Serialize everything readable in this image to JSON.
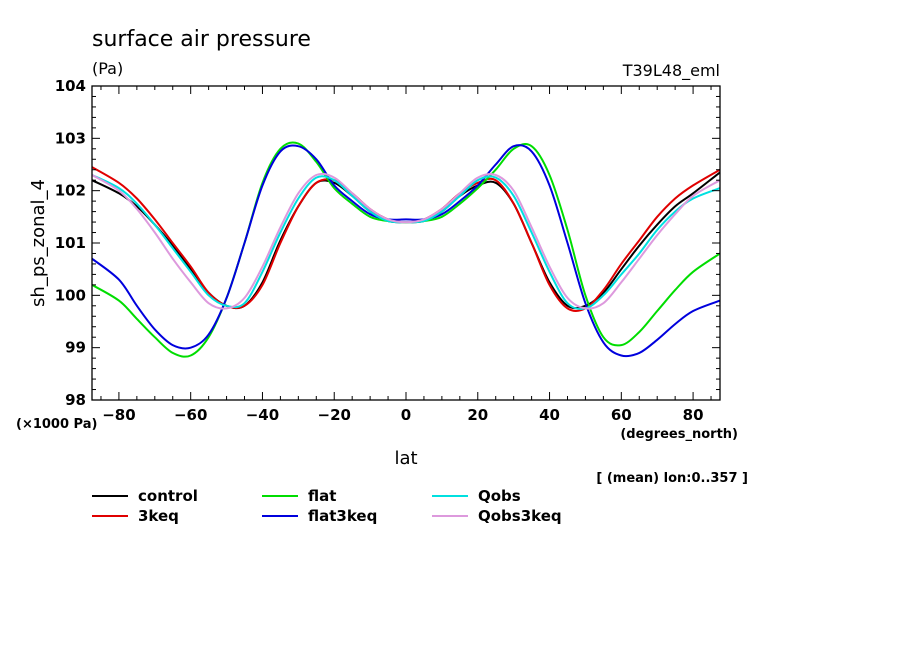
{
  "chart_data": {
    "type": "line",
    "title": "surface air pressure",
    "units_label": "(Pa)",
    "model_label": "T39L48_eml",
    "xlabel": "lat",
    "xunits": "(degrees_north)",
    "ylabel": "sh_ps_zonal_4",
    "yscale_label": "(×1000 Pa)",
    "footnote": "[ (mean) lon:0..357 ]",
    "xlim": [
      -87.5,
      87.5
    ],
    "ylim": [
      98,
      104
    ],
    "xticks": [
      -80,
      -60,
      -40,
      -20,
      0,
      20,
      40,
      60,
      80
    ],
    "xtick_labels": [
      "−80",
      "−60",
      "−40",
      "−20",
      "0",
      "20",
      "40",
      "60",
      "80"
    ],
    "yticks": [
      98,
      99,
      100,
      101,
      102,
      103,
      104
    ],
    "ytick_labels": [
      "98",
      "99",
      "100",
      "101",
      "102",
      "103",
      "104"
    ],
    "x": [
      -87.5,
      -80,
      -75,
      -70,
      -65,
      -60,
      -55,
      -50,
      -45,
      -40,
      -35,
      -30,
      -25,
      -20,
      -15,
      -10,
      -5,
      0,
      5,
      10,
      15,
      20,
      25,
      30,
      35,
      40,
      45,
      50,
      55,
      60,
      65,
      70,
      75,
      80,
      87.5
    ],
    "series": [
      {
        "name": "control",
        "color": "#000000",
        "values": [
          102.2,
          101.95,
          101.7,
          101.35,
          100.95,
          100.5,
          100.05,
          99.8,
          99.8,
          100.25,
          101.05,
          101.7,
          102.15,
          102.15,
          101.9,
          101.6,
          101.42,
          101.4,
          101.42,
          101.6,
          101.9,
          102.1,
          102.15,
          101.75,
          101.0,
          100.25,
          99.8,
          99.8,
          100.05,
          100.5,
          100.95,
          101.35,
          101.7,
          101.95,
          102.35
        ]
      },
      {
        "name": "3keq",
        "color": "#e00000",
        "values": [
          102.45,
          102.15,
          101.85,
          101.45,
          101.0,
          100.55,
          100.05,
          99.8,
          99.8,
          100.2,
          101.0,
          101.7,
          102.15,
          102.2,
          101.95,
          101.65,
          101.45,
          101.4,
          101.45,
          101.65,
          101.95,
          102.15,
          102.2,
          101.75,
          101.0,
          100.2,
          99.75,
          99.75,
          100.1,
          100.6,
          101.05,
          101.5,
          101.85,
          102.1,
          102.4
        ]
      },
      {
        "name": "flat",
        "color": "#00dd00",
        "values": [
          100.2,
          99.9,
          99.55,
          99.2,
          98.9,
          98.85,
          99.2,
          99.95,
          101.0,
          102.15,
          102.8,
          102.9,
          102.55,
          102.05,
          101.75,
          101.5,
          101.42,
          101.4,
          101.42,
          101.5,
          101.75,
          102.05,
          102.4,
          102.8,
          102.85,
          102.3,
          101.25,
          100.0,
          99.2,
          99.05,
          99.3,
          99.7,
          100.1,
          100.45,
          100.8
        ]
      },
      {
        "name": "flat3keq",
        "color": "#0000dd",
        "values": [
          100.7,
          100.3,
          99.8,
          99.35,
          99.05,
          99.0,
          99.25,
          99.95,
          101.0,
          102.1,
          102.75,
          102.85,
          102.6,
          102.1,
          101.8,
          101.55,
          101.45,
          101.45,
          101.45,
          101.55,
          101.8,
          102.1,
          102.5,
          102.85,
          102.75,
          102.1,
          101.0,
          99.85,
          99.1,
          98.85,
          98.9,
          99.15,
          99.45,
          99.7,
          99.9
        ]
      },
      {
        "name": "Qobs",
        "color": "#00e0e0",
        "values": [
          102.3,
          102.05,
          101.75,
          101.35,
          100.9,
          100.45,
          100.0,
          99.8,
          99.85,
          100.45,
          101.2,
          101.85,
          102.25,
          102.2,
          101.9,
          101.6,
          101.42,
          101.4,
          101.42,
          101.6,
          101.9,
          102.2,
          102.25,
          101.9,
          101.2,
          100.45,
          99.85,
          99.75,
          100.0,
          100.4,
          100.8,
          101.25,
          101.6,
          101.85,
          102.05
        ]
      },
      {
        "name": "Qobs3keq",
        "color": "#dd99dd",
        "values": [
          102.3,
          102.0,
          101.65,
          101.2,
          100.7,
          100.25,
          99.85,
          99.75,
          99.95,
          100.55,
          101.3,
          101.95,
          102.3,
          102.25,
          101.95,
          101.65,
          101.45,
          101.4,
          101.45,
          101.65,
          101.95,
          102.25,
          102.3,
          102.0,
          101.3,
          100.55,
          99.95,
          99.75,
          99.85,
          100.25,
          100.7,
          101.15,
          101.55,
          101.9,
          102.2
        ]
      }
    ]
  }
}
